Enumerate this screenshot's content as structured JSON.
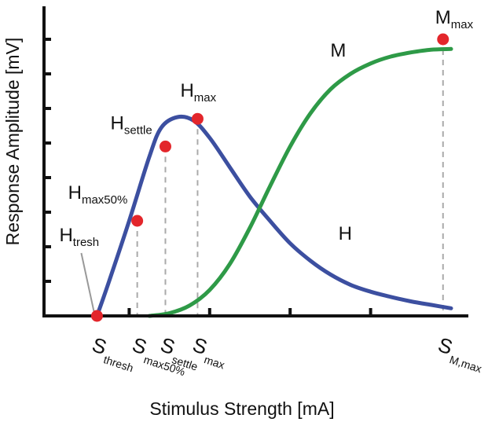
{
  "chart_data": {
    "type": "line",
    "xlabel": "Stimulus Strength [mA]",
    "ylabel": "Response Amplitude [mV]",
    "xlim": [
      0,
      10
    ],
    "ylim": [
      0,
      8
    ],
    "grid": false,
    "legend": "none",
    "yticks": [
      1,
      2,
      3,
      4,
      5,
      6,
      7,
      8
    ],
    "xticks_unlabeled": [
      2,
      4,
      6,
      8
    ],
    "series": [
      {
        "name": "H",
        "color": "#3c4fa0",
        "x": [
          1.2,
          1.5,
          2.0,
          2.5,
          2.8,
          3.2,
          3.6,
          4.0,
          4.5,
          5.0,
          5.5,
          6.0,
          6.5,
          7.0,
          7.5,
          8.0,
          8.5,
          9.0,
          9.5,
          10.0
        ],
        "y": [
          0.0,
          1.0,
          2.75,
          4.6,
          5.45,
          5.75,
          5.65,
          5.15,
          4.3,
          3.45,
          2.75,
          2.1,
          1.6,
          1.2,
          0.9,
          0.7,
          0.55,
          0.42,
          0.32,
          0.22
        ]
      },
      {
        "name": "M",
        "color": "#2e9a47",
        "x": [
          2.5,
          3.0,
          3.5,
          4.0,
          4.5,
          5.0,
          5.5,
          6.0,
          6.5,
          7.0,
          7.5,
          8.0,
          8.5,
          9.0,
          9.5,
          10.0
        ],
        "y": [
          0.0,
          0.08,
          0.3,
          0.75,
          1.5,
          2.55,
          3.75,
          4.9,
          5.85,
          6.55,
          7.0,
          7.3,
          7.5,
          7.62,
          7.7,
          7.72
        ]
      }
    ],
    "key_points": [
      {
        "x": 1.2,
        "y": 0.0,
        "curve_label": "H",
        "curve_sub": "tresh",
        "axis_label": "S",
        "axis_sub": "thresh"
      },
      {
        "x": 2.2,
        "y": 2.75,
        "curve_label": "H",
        "curve_sub": "max50%",
        "axis_label": "S",
        "axis_sub": "max50%"
      },
      {
        "x": 2.9,
        "y": 4.9,
        "curve_label": "H",
        "curve_sub": "settle",
        "axis_label": "S",
        "axis_sub": "settle"
      },
      {
        "x": 3.7,
        "y": 5.7,
        "curve_label": "H",
        "curve_sub": "max",
        "axis_label": "S",
        "axis_sub": "max"
      },
      {
        "x": 9.8,
        "y": 8.0,
        "curve_label": "M",
        "curve_sub": "max",
        "axis_label": "S",
        "axis_sub": "M,max"
      }
    ],
    "curve_labels": [
      {
        "text": "H",
        "x": 7.2,
        "y": 2.2
      },
      {
        "text": "M",
        "x": 7.0,
        "y": 7.5
      }
    ],
    "point_color": "#e3262b",
    "axis_color": "#111111",
    "dashed_color": "#aaaaaa"
  }
}
